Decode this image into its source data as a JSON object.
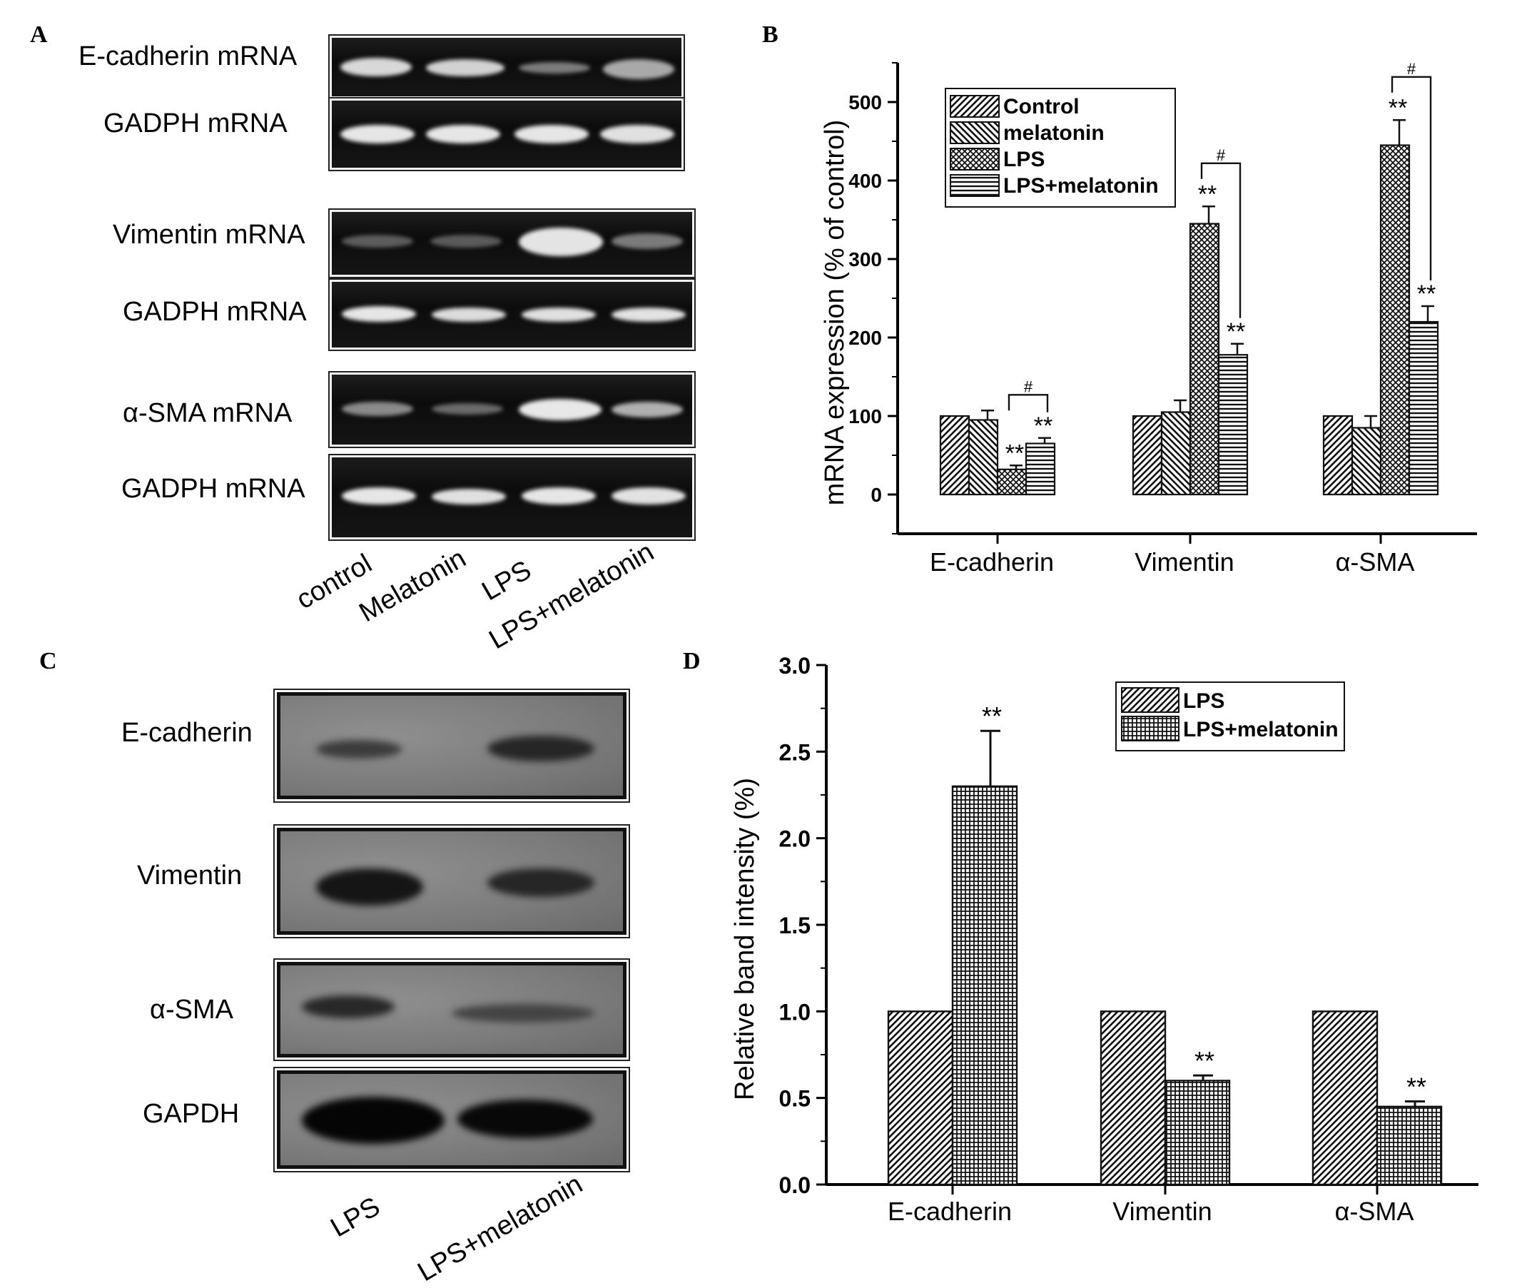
{
  "panels": {
    "A": "A",
    "B": "B",
    "C": "C",
    "D": "D"
  },
  "panelA": {
    "rows": [
      "E-cadherin mRNA",
      "GADPH  mRNA",
      "Vimentin mRNA",
      "GADPH mRNA",
      "α-SMA mRNA",
      "GADPH mRNA"
    ],
    "lanes": [
      "control",
      "Melatonin",
      "LPS",
      "LPS+melatonin"
    ]
  },
  "panelC": {
    "rows": [
      "E-cadherin",
      "Vimentin",
      "α-SMA",
      "GAPDH"
    ],
    "lanes": [
      "LPS",
      "LPS+melatonin"
    ]
  },
  "chart_data": [
    {
      "panel": "B",
      "type": "bar",
      "ylabel": "mRNA expression (% of control)",
      "ylim": [
        -50,
        550
      ],
      "yticks": [
        0,
        100,
        200,
        300,
        400,
        500
      ],
      "categories": [
        "E-cadherin",
        "Vimentin",
        "α-SMA"
      ],
      "legend_position": "top-left",
      "series": [
        {
          "name": "Control",
          "values": [
            100,
            100,
            100
          ],
          "errors": [
            0,
            0,
            0
          ],
          "pattern": "diag-fwd"
        },
        {
          "name": "melatonin",
          "values": [
            95,
            105,
            85
          ],
          "errors": [
            12,
            15,
            15
          ],
          "pattern": "diag-back"
        },
        {
          "name": "LPS",
          "values": [
            32,
            345,
            445
          ],
          "errors": [
            5,
            22,
            32
          ],
          "pattern": "crosshatch"
        },
        {
          "name": "LPS+melatonin",
          "values": [
            65,
            178,
            220
          ],
          "errors": [
            7,
            14,
            20
          ],
          "pattern": "horizontal"
        }
      ],
      "annotations": [
        {
          "category": 0,
          "series": 2,
          "text": "**"
        },
        {
          "category": 0,
          "series": 3,
          "text": "**"
        },
        {
          "category": 1,
          "series": 2,
          "text": "**"
        },
        {
          "category": 1,
          "series": 3,
          "text": "**"
        },
        {
          "category": 2,
          "series": 2,
          "text": "**"
        },
        {
          "category": 2,
          "series": 3,
          "text": "**"
        }
      ],
      "comparisons": [
        {
          "category": 0,
          "text": "#"
        },
        {
          "category": 1,
          "text": "#"
        },
        {
          "category": 2,
          "text": "#"
        }
      ]
    },
    {
      "panel": "D",
      "type": "bar",
      "ylabel": "Relative band intensity (%)",
      "ylim": [
        0,
        3.0
      ],
      "yticks": [
        "0.0",
        "0.5",
        "1.0",
        "1.5",
        "2.0",
        "2.5",
        "3.0"
      ],
      "categories": [
        "E-cadherin",
        "Vimentin",
        "α-SMA"
      ],
      "legend_position": "top-right",
      "series": [
        {
          "name": "LPS",
          "values": [
            1.0,
            1.0,
            1.0
          ],
          "errors": [
            0,
            0,
            0
          ],
          "pattern": "diag-fwd"
        },
        {
          "name": "LPS+melatonin",
          "values": [
            2.3,
            0.6,
            0.45
          ],
          "errors": [
            0.32,
            0.03,
            0.03
          ],
          "pattern": "grid"
        }
      ],
      "annotations": [
        {
          "category": 0,
          "series": 1,
          "text": "**"
        },
        {
          "category": 1,
          "series": 1,
          "text": "**"
        },
        {
          "category": 2,
          "series": 1,
          "text": "**"
        }
      ]
    }
  ]
}
